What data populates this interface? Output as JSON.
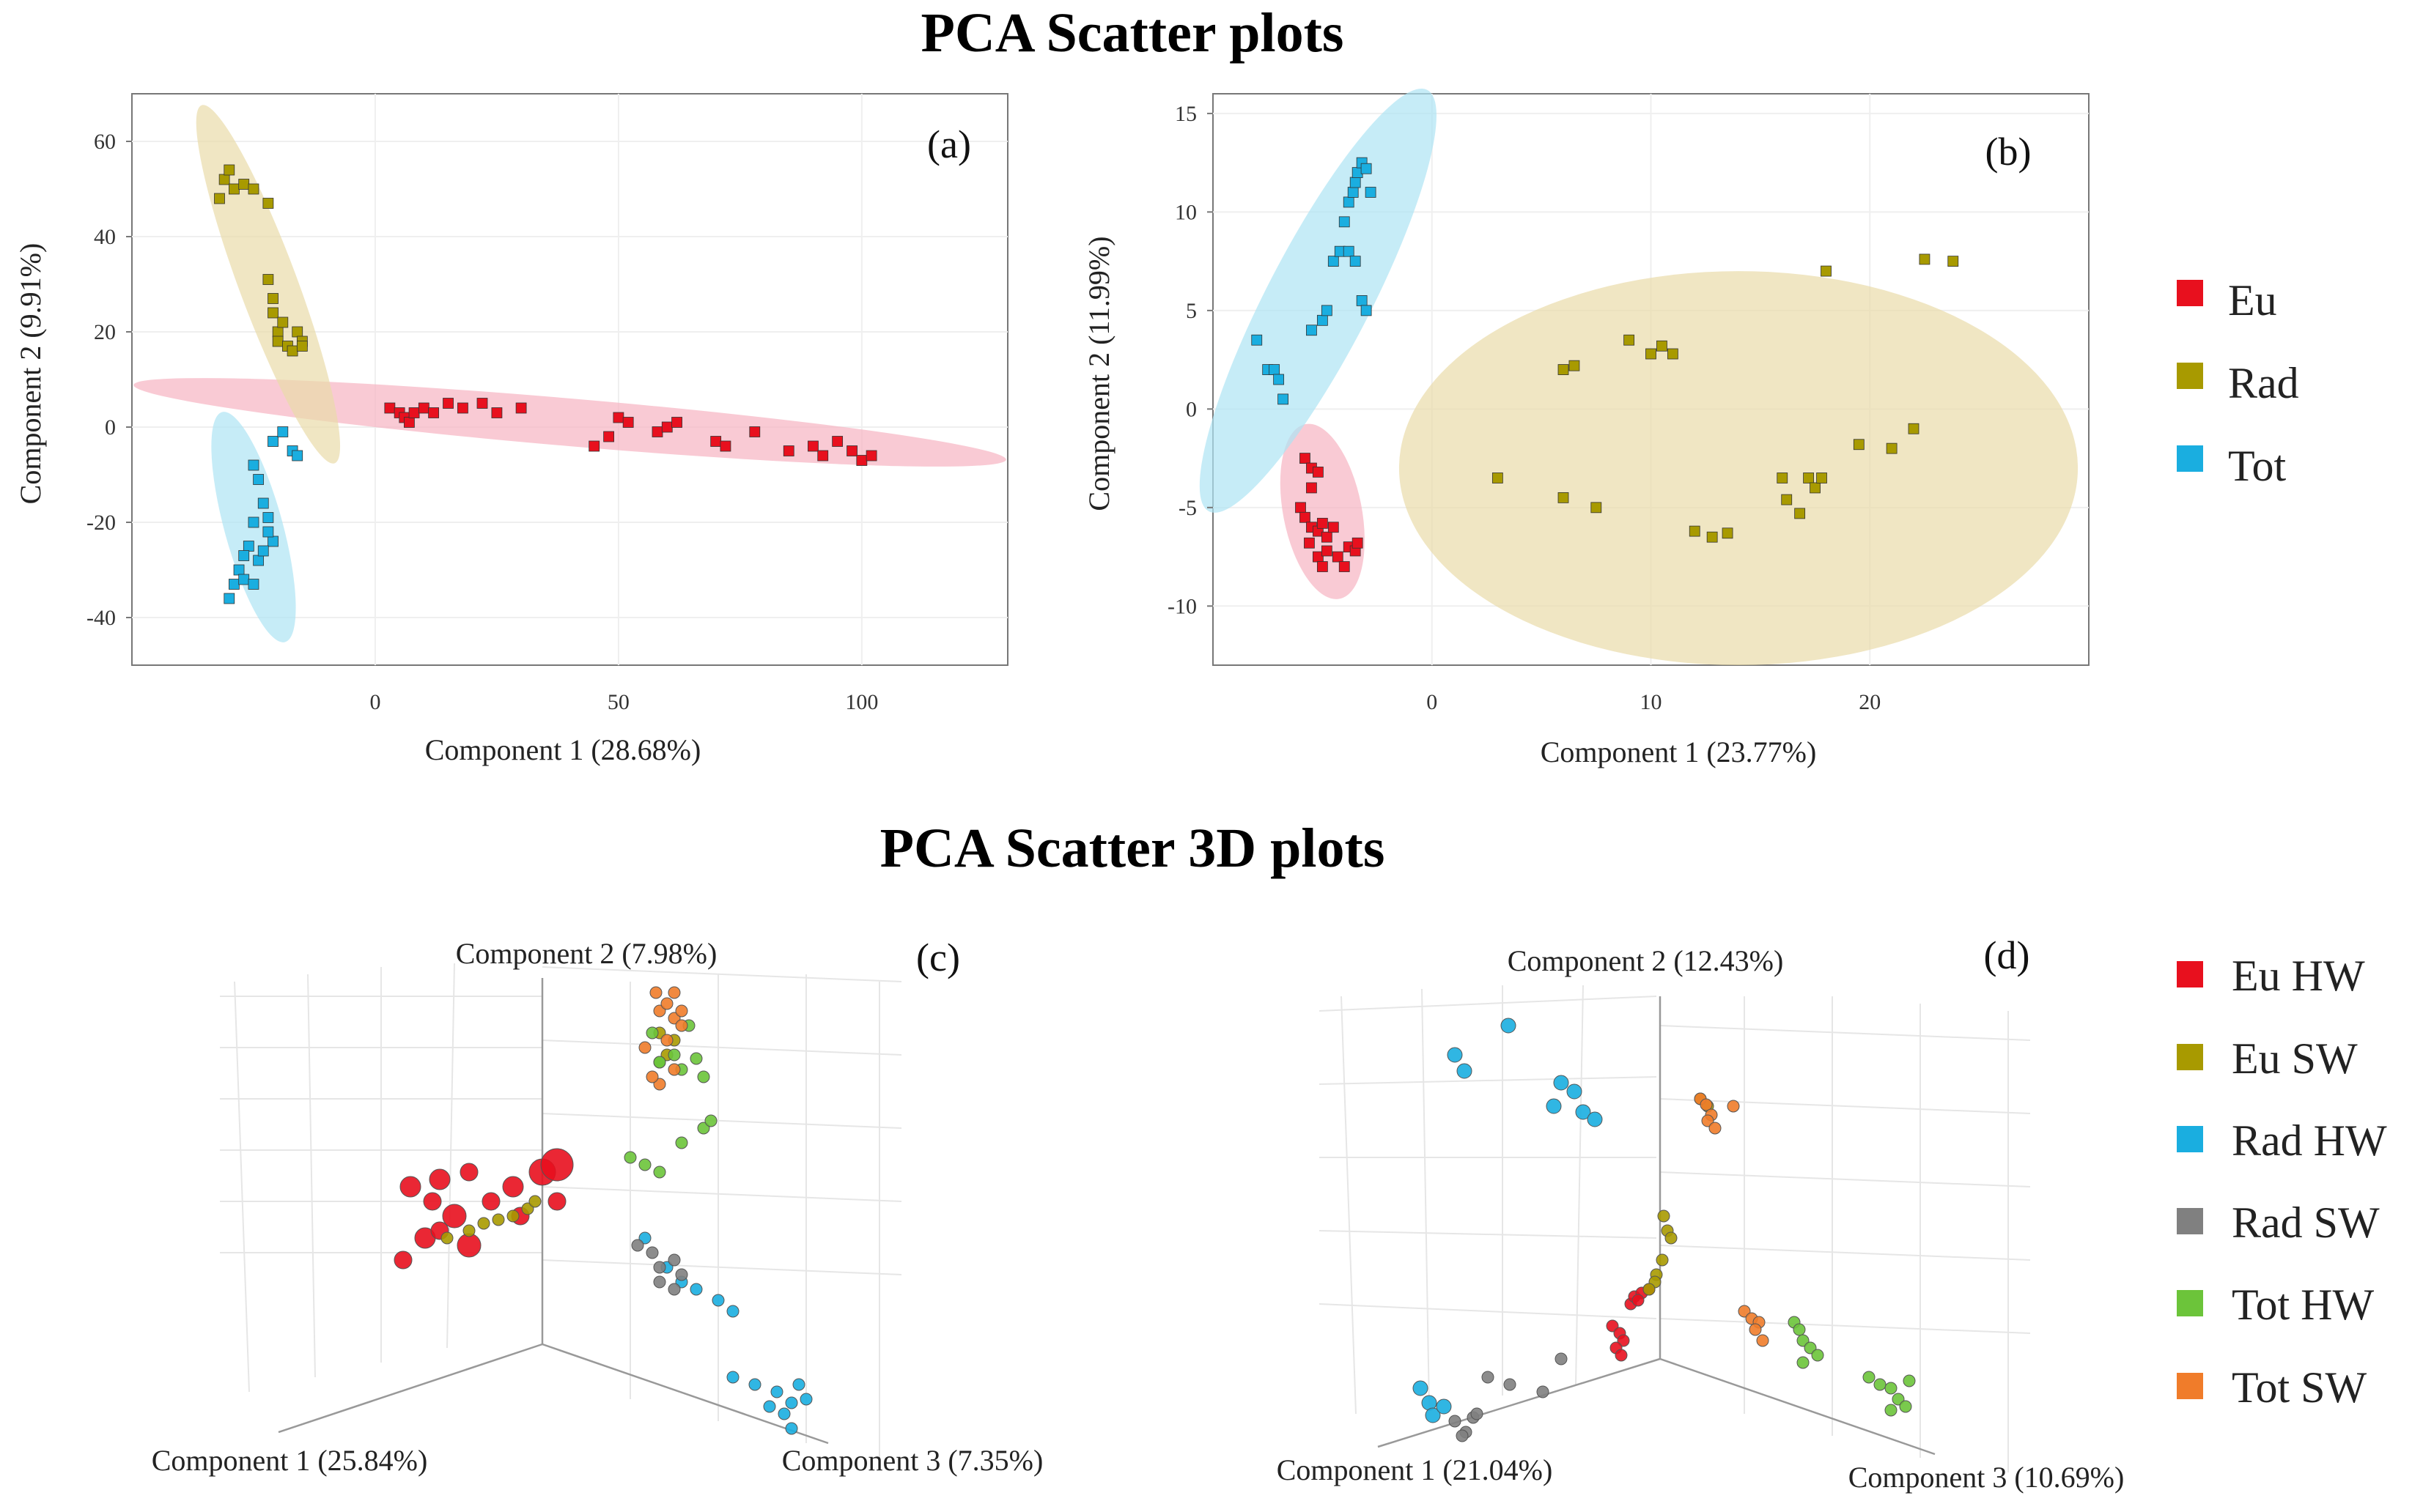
{
  "titles": {
    "top": "PCA Scatter plots",
    "bottom": "PCA Scatter 3D plots"
  },
  "colors": {
    "Eu": "#e8101e",
    "Rad": "#a89a00",
    "Tot": "#1aaee0",
    "Eu HW": "#e8101e",
    "Eu SW": "#a89a00",
    "Rad HW": "#1aaee0",
    "Rad SW": "#808080",
    "Tot HW": "#6cc43a",
    "Tot SW": "#f07c2a"
  },
  "legend_top": [
    "Eu",
    "Rad",
    "Tot"
  ],
  "legend_bottom": [
    "Eu HW",
    "Eu SW",
    "Rad HW",
    "Rad SW",
    "Tot HW",
    "Tot SW"
  ],
  "chart_data": [
    {
      "id": "a",
      "type": "scatter",
      "panel_label": "(a)",
      "xlabel": "Component 1 (28.68%)",
      "ylabel": "Component 2 (9.91%)",
      "xlim": [
        -50,
        130
      ],
      "ylim": [
        -50,
        70
      ],
      "xticks": [
        0,
        50,
        100
      ],
      "yticks": [
        -40,
        -20,
        0,
        20,
        40,
        60
      ],
      "series": [
        {
          "name": "Eu",
          "points": [
            [
              3,
              4
            ],
            [
              5,
              3
            ],
            [
              6,
              2
            ],
            [
              7,
              1
            ],
            [
              8,
              3
            ],
            [
              10,
              4
            ],
            [
              12,
              3
            ],
            [
              15,
              5
            ],
            [
              18,
              4
            ],
            [
              22,
              5
            ],
            [
              25,
              3
            ],
            [
              30,
              4
            ],
            [
              45,
              -4
            ],
            [
              48,
              -2
            ],
            [
              50,
              2
            ],
            [
              52,
              1
            ],
            [
              58,
              -1
            ],
            [
              60,
              0
            ],
            [
              62,
              1
            ],
            [
              70,
              -3
            ],
            [
              72,
              -4
            ],
            [
              78,
              -1
            ],
            [
              85,
              -5
            ],
            [
              90,
              -4
            ],
            [
              92,
              -6
            ],
            [
              95,
              -3
            ],
            [
              98,
              -5
            ],
            [
              100,
              -7
            ],
            [
              102,
              -6
            ]
          ],
          "ellipse": {
            "cx": 40,
            "cy": 1,
            "rx": 90,
            "ry": 5,
            "angle": -5
          }
        },
        {
          "name": "Rad",
          "points": [
            [
              -32,
              48
            ],
            [
              -31,
              52
            ],
            [
              -30,
              54
            ],
            [
              -29,
              50
            ],
            [
              -27,
              51
            ],
            [
              -25,
              50
            ],
            [
              -22,
              47
            ],
            [
              -22,
              31
            ],
            [
              -21,
              27
            ],
            [
              -21,
              24
            ],
            [
              -20,
              20
            ],
            [
              -20,
              18
            ],
            [
              -19,
              22
            ],
            [
              -18,
              17
            ],
            [
              -17,
              16
            ],
            [
              -16,
              20
            ],
            [
              -15,
              18
            ],
            [
              -15,
              17
            ]
          ],
          "ellipse": {
            "cx": -22,
            "cy": 30,
            "rx": 40,
            "ry": 6,
            "angle": -70
          }
        },
        {
          "name": "Tot",
          "points": [
            [
              -21,
              -3
            ],
            [
              -19,
              -1
            ],
            [
              -17,
              -5
            ],
            [
              -16,
              -6
            ],
            [
              -25,
              -8
            ],
            [
              -24,
              -11
            ],
            [
              -23,
              -16
            ],
            [
              -22,
              -19
            ],
            [
              -21,
              -24
            ],
            [
              -25,
              -20
            ],
            [
              -26,
              -25
            ],
            [
              -27,
              -27
            ],
            [
              -28,
              -30
            ],
            [
              -29,
              -33
            ],
            [
              -30,
              -36
            ],
            [
              -27,
              -32
            ],
            [
              -25,
              -33
            ],
            [
              -24,
              -28
            ],
            [
              -23,
              -26
            ],
            [
              -22,
              -22
            ]
          ],
          "ellipse": {
            "cx": -25,
            "cy": -21,
            "rx": 25,
            "ry": 6,
            "angle": -75
          }
        }
      ]
    },
    {
      "id": "b",
      "type": "scatter",
      "panel_label": "(b)",
      "xlabel": "Component 1 (23.77%)",
      "ylabel": "Component 2 (11.99%)",
      "xlim": [
        -10,
        30
      ],
      "ylim": [
        -13,
        16
      ],
      "xticks": [
        0,
        10,
        20
      ],
      "yticks": [
        -10,
        -5,
        0,
        5,
        10,
        15
      ],
      "series": [
        {
          "name": "Eu",
          "points": [
            [
              -5.8,
              -2.5
            ],
            [
              -5.5,
              -3
            ],
            [
              -5.2,
              -3.2
            ],
            [
              -5.5,
              -4
            ],
            [
              -6,
              -5
            ],
            [
              -5.8,
              -5.5
            ],
            [
              -5.5,
              -6
            ],
            [
              -5.2,
              -6.2
            ],
            [
              -5,
              -5.8
            ],
            [
              -4.8,
              -6.5
            ],
            [
              -4.5,
              -6
            ],
            [
              -5.6,
              -6.8
            ],
            [
              -5.2,
              -7.5
            ],
            [
              -4.8,
              -7.2
            ],
            [
              -4.3,
              -7.5
            ],
            [
              -4,
              -8
            ],
            [
              -3.8,
              -7
            ],
            [
              -3.5,
              -7.2
            ],
            [
              -3.4,
              -6.8
            ],
            [
              -5,
              -8
            ]
          ],
          "ellipse": {
            "cx": -5,
            "cy": -5.2,
            "rx": 4.5,
            "ry": 1.8,
            "angle": -80
          }
        },
        {
          "name": "Rad",
          "points": [
            [
              3,
              -3.5
            ],
            [
              6,
              2
            ],
            [
              6.5,
              2.2
            ],
            [
              6,
              -4.5
            ],
            [
              7.5,
              -5
            ],
            [
              9,
              3.5
            ],
            [
              10,
              2.8
            ],
            [
              10.5,
              3.2
            ],
            [
              11,
              2.8
            ],
            [
              12,
              -6.2
            ],
            [
              12.8,
              -6.5
            ],
            [
              13.5,
              -6.3
            ],
            [
              16,
              -3.5
            ],
            [
              16.2,
              -4.6
            ],
            [
              16.8,
              -5.3
            ],
            [
              17.2,
              -3.5
            ],
            [
              17.5,
              -4
            ],
            [
              17.8,
              -3.5
            ],
            [
              18,
              7
            ],
            [
              19.5,
              -1.8
            ],
            [
              21,
              -2
            ],
            [
              22,
              -1
            ],
            [
              22.5,
              7.6
            ],
            [
              23.8,
              7.5
            ]
          ],
          "ellipse": {
            "cx": 14,
            "cy": -3,
            "rx": 15.5,
            "ry": 10,
            "angle": 0
          }
        },
        {
          "name": "Tot",
          "points": [
            [
              -8,
              3.5
            ],
            [
              -7.5,
              2
            ],
            [
              -7.2,
              2
            ],
            [
              -7,
              1.5
            ],
            [
              -6.8,
              0.5
            ],
            [
              -5.5,
              4
            ],
            [
              -5,
              4.5
            ],
            [
              -4.8,
              5
            ],
            [
              -4.5,
              7.5
            ],
            [
              -4.2,
              8
            ],
            [
              -4,
              9.5
            ],
            [
              -3.8,
              10.5
            ],
            [
              -3.6,
              11
            ],
            [
              -3.5,
              11.5
            ],
            [
              -3.4,
              12
            ],
            [
              -3.2,
              12.5
            ],
            [
              -3,
              12.2
            ],
            [
              -3.8,
              8
            ],
            [
              -3.5,
              7.5
            ],
            [
              -3.2,
              5.5
            ],
            [
              -3,
              5
            ],
            [
              -2.8,
              11
            ]
          ],
          "ellipse": {
            "cx": -5.2,
            "cy": 5.5,
            "rx": 11.8,
            "ry": 2.4,
            "angle": 65
          }
        }
      ]
    },
    {
      "id": "c",
      "type": "scatter3d",
      "panel_label": "(c)",
      "axis_labels": [
        "Component 1 (25.84%)",
        "Component 2 (7.98%)",
        "Component 3 (7.35%)"
      ]
    },
    {
      "id": "d",
      "type": "scatter3d",
      "panel_label": "(d)",
      "axis_labels": [
        "Component 1 (21.04%)",
        "Component 2 (12.43%)",
        "Component 3 (10.69%)"
      ]
    }
  ]
}
